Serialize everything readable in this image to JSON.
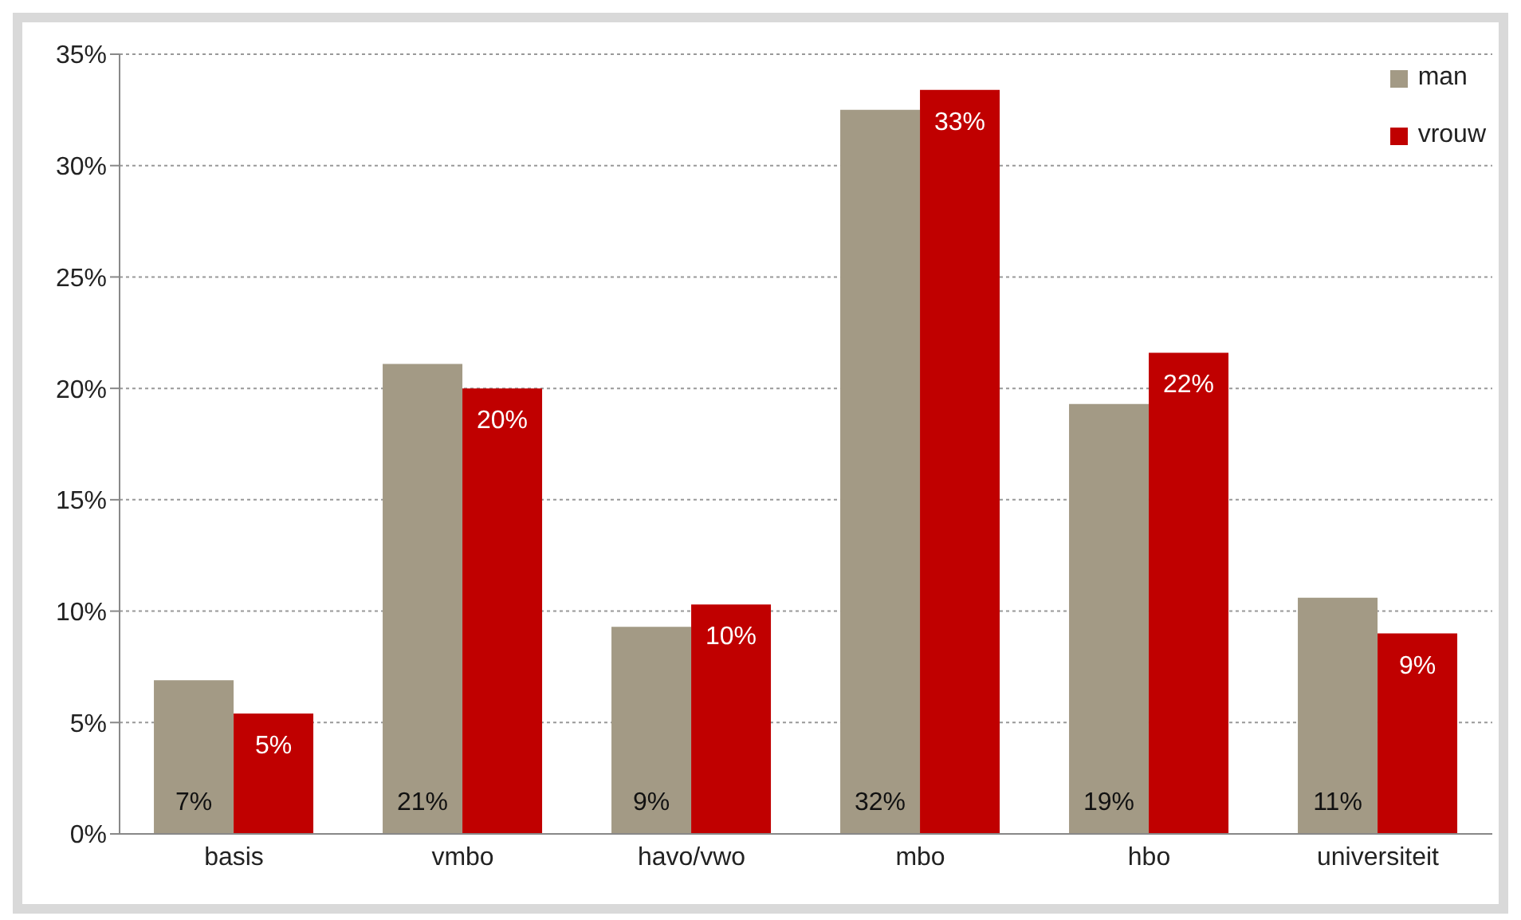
{
  "chart_data": {
    "type": "bar",
    "categories": [
      "basis",
      "vmbo",
      "havo/vwo",
      "mbo",
      "hbo",
      "universiteit"
    ],
    "series": [
      {
        "name": "man",
        "color": "#a39a85",
        "values": [
          6.9,
          21.1,
          9.3,
          32.5,
          19.3,
          10.6
        ],
        "value_labels": [
          "7%",
          "21%",
          "9%",
          "32%",
          "19%",
          "11%"
        ]
      },
      {
        "name": "vrouw",
        "color": "#c00000",
        "values": [
          5.4,
          20.0,
          10.3,
          33.4,
          21.6,
          9.0
        ],
        "value_labels": [
          "5%",
          "20%",
          "10%",
          "33%",
          "22%",
          "9%"
        ]
      }
    ],
    "ylim": [
      0,
      35
    ],
    "yticks": [
      {
        "value": 0,
        "label": "0%"
      },
      {
        "value": 5,
        "label": "5%"
      },
      {
        "value": 10,
        "label": "10%"
      },
      {
        "value": 15,
        "label": "15%"
      },
      {
        "value": 20,
        "label": "20%"
      },
      {
        "value": 25,
        "label": "25%"
      },
      {
        "value": 30,
        "label": "30%"
      },
      {
        "value": 35,
        "label": "35%"
      }
    ],
    "grid": "y",
    "legend": "top right"
  }
}
